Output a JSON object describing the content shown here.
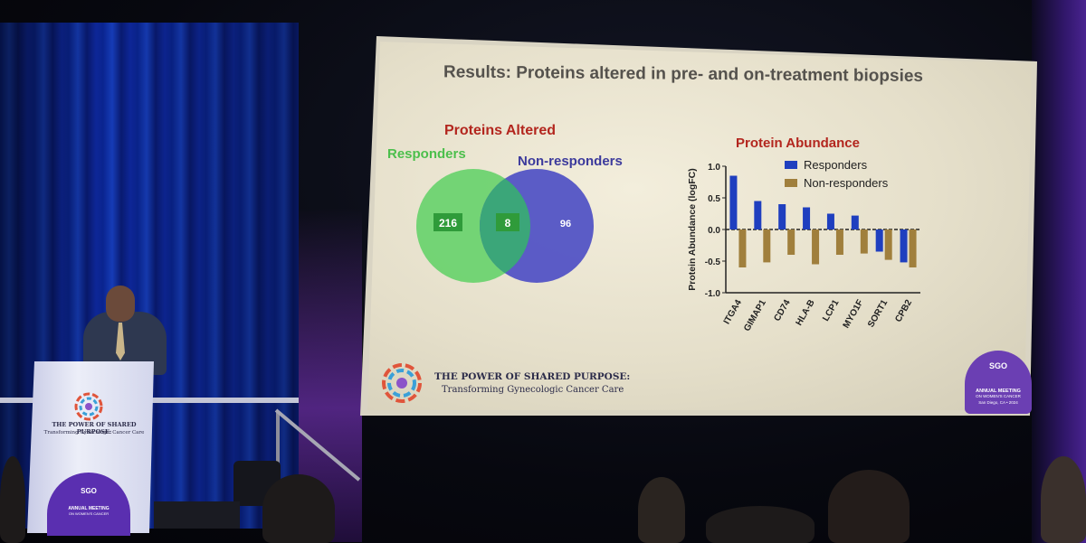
{
  "slide": {
    "title": "Results: Proteins altered in pre- and on-treatment biopsies",
    "venn": {
      "title": "Proteins Altered",
      "left_label": "Responders",
      "right_label": "Non-responders",
      "left_only": "216",
      "overlap": "8",
      "right_only": "96",
      "colors": {
        "left": "#5fcf64",
        "right": "#4b4cc2",
        "overlap": "#3aa86c"
      }
    },
    "footer": {
      "line1": "THE POWER OF SHARED PURPOSE:",
      "line2": "Transforming Gynecologic Cancer Care"
    },
    "badge": {
      "org": "SGO",
      "line1": "ANNUAL MEETING",
      "line2": "ON WOMEN'S CANCER",
      "line3": "San Diego, CA • 2024"
    }
  },
  "chart_data": {
    "type": "bar",
    "title": "Protein Abundance",
    "ylabel": "Protein  Abundance (logFC)",
    "xlabel": "",
    "ylim": [
      -1.0,
      1.0
    ],
    "yticks": [
      "1.0",
      "0.5",
      "0.0",
      "-0.5",
      "-1.0"
    ],
    "categories": [
      "ITGA4",
      "GIMAP1",
      "CD74",
      "HLA-B",
      "LCP1",
      "MYO1F",
      "SORT1",
      "CPB2"
    ],
    "series": [
      {
        "name": "Responders",
        "color": "#1f3fbf",
        "values": [
          0.85,
          0.45,
          0.4,
          0.35,
          0.25,
          0.22,
          -0.35,
          -0.52
        ]
      },
      {
        "name": "Non-responders",
        "color": "#a07f3c",
        "values": [
          -0.6,
          -0.52,
          -0.4,
          -0.55,
          -0.4,
          -0.38,
          -0.48,
          -0.6
        ]
      }
    ]
  },
  "podium": {
    "line1": "THE POWER OF SHARED PURPOSE:",
    "line2": "Transforming Gynecologic Cancer Care",
    "badge_org": "SGO",
    "badge_line1": "ANNUAL MEETING",
    "badge_line2": "ON WOMEN'S CANCER"
  }
}
